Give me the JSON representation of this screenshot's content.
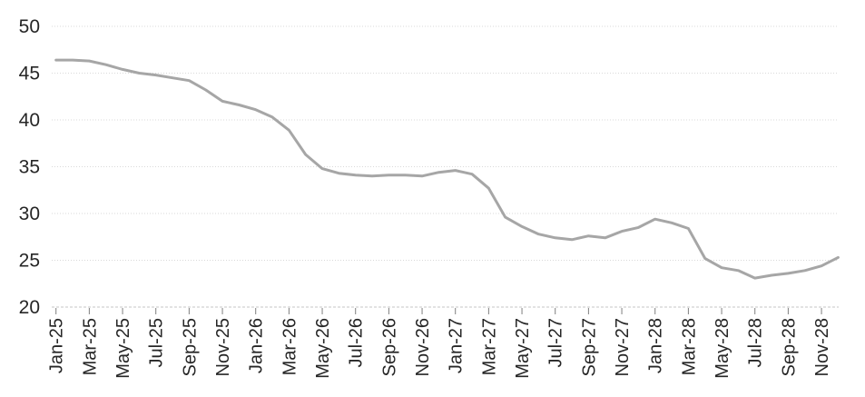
{
  "chart": {
    "colors": {
      "line": "#a6a6a6",
      "gridline": "#d9d9d9",
      "axis_line": "#c6c6c6",
      "tick_mark": "#7f7f7f",
      "label_text": "#262626",
      "background": "#ffffff"
    }
  },
  "chart_data": {
    "type": "line",
    "title": "",
    "xlabel": "",
    "ylabel": "",
    "legend": "none",
    "grid": "horizontal dotted lines",
    "ylim": [
      20,
      50
    ],
    "y_ticks": [
      50,
      45,
      40,
      35,
      30,
      25,
      20
    ],
    "x_tick_labels": [
      "Jan-25",
      "Mar-25",
      "May-25",
      "Jul-25",
      "Sep-25",
      "Nov-25",
      "Jan-26",
      "Mar-26",
      "May-26",
      "Jul-26",
      "Sep-26",
      "Nov-26",
      "Jan-27",
      "Mar-27",
      "May-27",
      "Jul-27",
      "Sep-27",
      "Nov-27",
      "Jan-28",
      "Mar-28",
      "May-28",
      "Jul-28",
      "Sep-28",
      "Nov-28"
    ],
    "x": [
      "Jan-25",
      "Feb-25",
      "Mar-25",
      "Apr-25",
      "May-25",
      "Jun-25",
      "Jul-25",
      "Aug-25",
      "Sep-25",
      "Oct-25",
      "Nov-25",
      "Dec-25",
      "Jan-26",
      "Feb-26",
      "Mar-26",
      "Apr-26",
      "May-26",
      "Jun-26",
      "Jul-26",
      "Aug-26",
      "Sep-26",
      "Oct-26",
      "Nov-26",
      "Dec-26",
      "Jan-27",
      "Feb-27",
      "Mar-27",
      "Apr-27",
      "May-27",
      "Jun-27",
      "Jul-27",
      "Aug-27",
      "Sep-27",
      "Oct-27",
      "Nov-27",
      "Dec-27",
      "Jan-28",
      "Feb-28",
      "Mar-28",
      "Apr-28",
      "May-28",
      "Jun-28",
      "Jul-28",
      "Aug-28",
      "Sep-28",
      "Oct-28",
      "Nov-28",
      "Dec-28"
    ],
    "series": [
      {
        "name": "forecast-line",
        "color": "#a6a6a6",
        "values": [
          46.4,
          46.4,
          46.3,
          45.9,
          45.4,
          45.0,
          44.8,
          44.5,
          44.2,
          43.2,
          42.0,
          41.6,
          41.1,
          40.3,
          38.9,
          36.3,
          34.8,
          34.3,
          34.1,
          34.0,
          34.1,
          34.1,
          34.0,
          34.4,
          34.6,
          34.2,
          32.7,
          29.6,
          28.6,
          27.8,
          27.4,
          27.2,
          27.6,
          27.4,
          28.1,
          28.5,
          29.4,
          29.0,
          28.4,
          25.2,
          24.2,
          23.9,
          23.1,
          23.4,
          23.6,
          23.9,
          24.4,
          25.3
        ]
      }
    ]
  }
}
